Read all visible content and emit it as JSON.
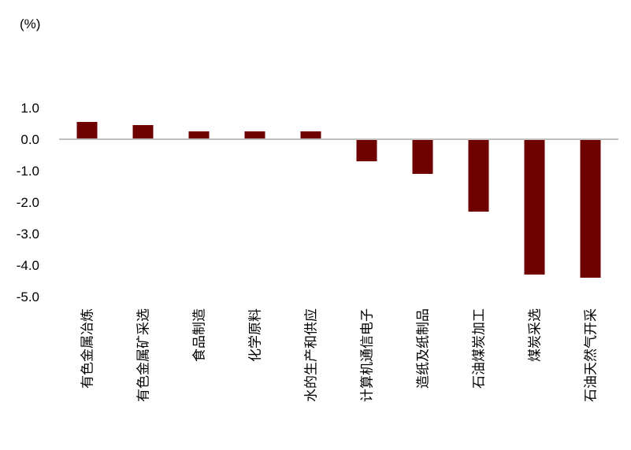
{
  "chart_data": {
    "type": "bar",
    "unit_label": "(%)",
    "categories": [
      "有色金属冶炼",
      "有色金属矿采选",
      "食品制造",
      "化学原料",
      "水的生产和供应",
      "计算机通信电子",
      "造纸及纸制品",
      "石油煤炭加工",
      "煤炭采选",
      "石油天然气开采"
    ],
    "series": [
      {
        "values": [
          0.55,
          0.45,
          0.25,
          0.25,
          0.25,
          -0.7,
          -1.1,
          -2.3,
          -4.3,
          -4.4
        ]
      }
    ],
    "ylim": [
      -5.0,
      1.0
    ],
    "yticks": [
      "1.0",
      "0.0",
      "-1.0",
      "-2.0",
      "-3.0",
      "-4.0",
      "-5.0"
    ],
    "grid": false,
    "colors": {
      "bar": "#6e0000",
      "zero_line": "#bfbfbf"
    }
  }
}
